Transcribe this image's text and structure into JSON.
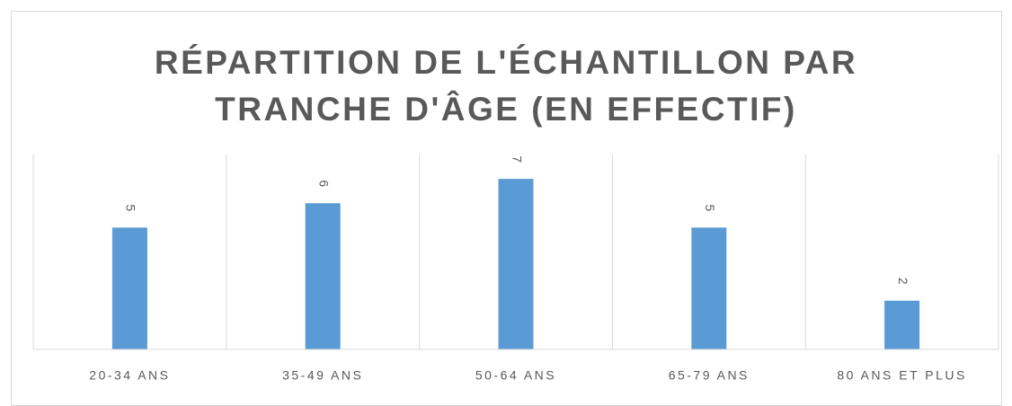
{
  "chart_data": {
    "type": "bar",
    "title": "RÉPARTITION DE L'ÉCHANTILLON PAR TRANCHE D'ÂGE (EN EFFECTIF)",
    "categories": [
      "20-34 ANS",
      "35-49 ANS",
      "50-64 ANS",
      "65-79 ANS",
      "80 ANS ET PLUS"
    ],
    "values": [
      5,
      6,
      7,
      5,
      2
    ],
    "color": "#5b9bd5",
    "ylim": [
      0,
      8
    ]
  }
}
